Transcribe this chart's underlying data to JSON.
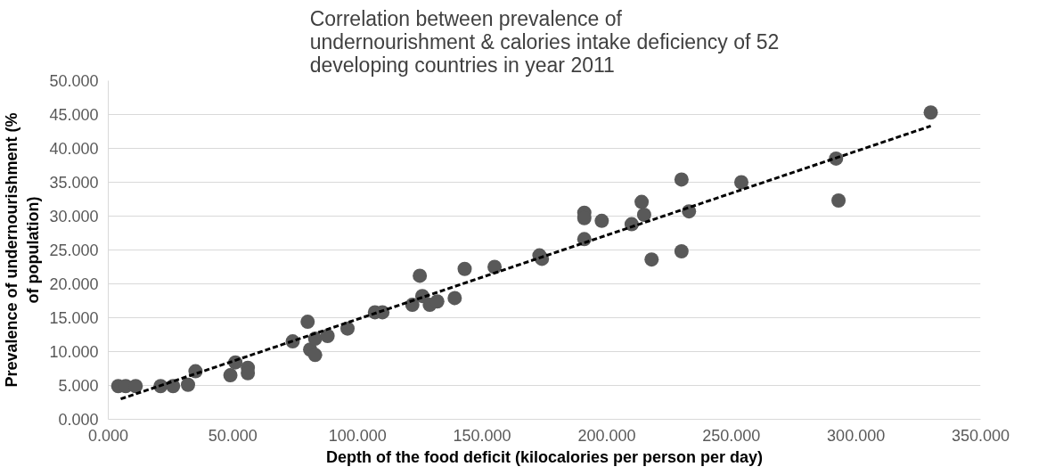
{
  "chart_data": {
    "type": "scatter",
    "title": "Correlation between prevalence of\nundernourishment & calories intake deficiency of 52\ndeveloping countries in year 2011",
    "xlabel": "Depth of the food deficit (kilocalories per person per day)",
    "ylabel": "Prevalence of undernourishment (%\nof population)",
    "xlim": [
      0,
      350
    ],
    "ylim": [
      0,
      50
    ],
    "xticks": [
      {
        "value": 0,
        "label": "0.000"
      },
      {
        "value": 50,
        "label": "50.000"
      },
      {
        "value": 100,
        "label": "100.000"
      },
      {
        "value": 150,
        "label": "150.000"
      },
      {
        "value": 200,
        "label": "200.000"
      },
      {
        "value": 250,
        "label": "250.000"
      },
      {
        "value": 300,
        "label": "300.000"
      },
      {
        "value": 350,
        "label": "350.000"
      }
    ],
    "yticks": [
      {
        "value": 0,
        "label": "0.000"
      },
      {
        "value": 5,
        "label": "5.000"
      },
      {
        "value": 10,
        "label": "10.000"
      },
      {
        "value": 15,
        "label": "15.000"
      },
      {
        "value": 20,
        "label": "20.000"
      },
      {
        "value": 25,
        "label": "25.000"
      },
      {
        "value": 30,
        "label": "30.000"
      },
      {
        "value": 35,
        "label": "35.000"
      },
      {
        "value": 40,
        "label": "40.000"
      },
      {
        "value": 45,
        "label": "45.000"
      },
      {
        "value": 50,
        "label": "50.000"
      }
    ],
    "grid": "y",
    "series": [
      {
        "color": "#595959",
        "marker": "circle",
        "x": [
          4,
          7,
          11,
          21,
          26,
          32,
          35,
          49,
          51,
          56,
          56,
          74,
          80,
          81,
          83,
          83,
          88,
          96,
          107,
          110,
          122,
          125,
          126,
          129,
          132,
          139,
          143,
          155,
          173,
          174,
          191,
          191,
          191,
          198,
          210,
          215,
          214,
          218,
          230,
          230,
          233,
          254,
          292,
          293,
          330
        ],
        "values": [
          4.9,
          4.9,
          4.9,
          4.9,
          4.9,
          5.1,
          7.1,
          6.5,
          8.4,
          7.6,
          6.8,
          11.5,
          14.4,
          10.3,
          9.5,
          11.9,
          12.3,
          13.4,
          15.8,
          15.8,
          16.9,
          21.2,
          18.2,
          16.9,
          17.4,
          17.9,
          22.2,
          22.5,
          24.2,
          23.7,
          26.6,
          30.5,
          29.7,
          29.3,
          28.8,
          30.2,
          32.1,
          23.6,
          35.4,
          24.8,
          30.7,
          35.0,
          38.5,
          32.3,
          45.3
        ]
      },
      {
        "type": "line",
        "color": "#000000",
        "line_style": "dashed",
        "x": [
          5,
          330
        ],
        "values": [
          3.0,
          43.3
        ]
      }
    ]
  }
}
